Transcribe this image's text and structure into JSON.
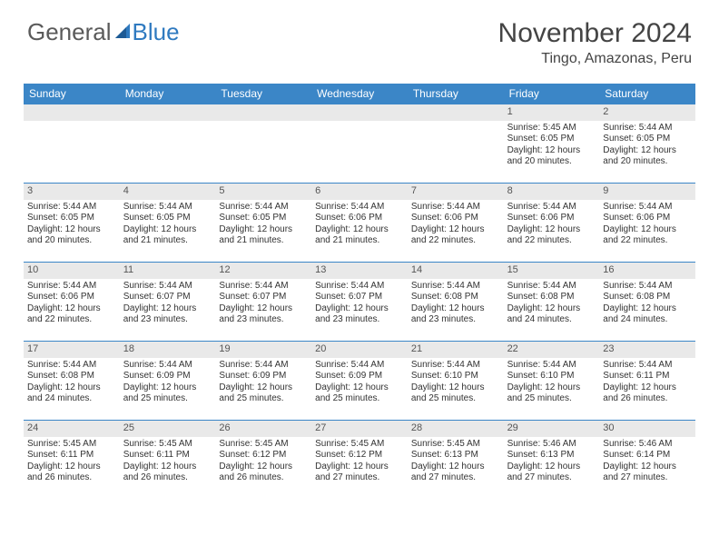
{
  "logo": {
    "text1": "General",
    "text2": "Blue"
  },
  "title": "November 2024",
  "location": "Tingo, Amazonas, Peru",
  "colors": {
    "header_bg": "#3b86c7",
    "header_fg": "#ffffff",
    "border": "#3b86c7",
    "daynum_bg": "#e9e9e9",
    "text": "#333333",
    "logo_gray": "#5a5a5a",
    "logo_blue": "#2f7ac0"
  },
  "day_names": [
    "Sunday",
    "Monday",
    "Tuesday",
    "Wednesday",
    "Thursday",
    "Friday",
    "Saturday"
  ],
  "weeks": [
    [
      {
        "n": ""
      },
      {
        "n": ""
      },
      {
        "n": ""
      },
      {
        "n": ""
      },
      {
        "n": ""
      },
      {
        "n": "1",
        "sr": "Sunrise: 5:45 AM",
        "ss": "Sunset: 6:05 PM",
        "dl1": "Daylight: 12 hours",
        "dl2": "and 20 minutes."
      },
      {
        "n": "2",
        "sr": "Sunrise: 5:44 AM",
        "ss": "Sunset: 6:05 PM",
        "dl1": "Daylight: 12 hours",
        "dl2": "and 20 minutes."
      }
    ],
    [
      {
        "n": "3",
        "sr": "Sunrise: 5:44 AM",
        "ss": "Sunset: 6:05 PM",
        "dl1": "Daylight: 12 hours",
        "dl2": "and 20 minutes."
      },
      {
        "n": "4",
        "sr": "Sunrise: 5:44 AM",
        "ss": "Sunset: 6:05 PM",
        "dl1": "Daylight: 12 hours",
        "dl2": "and 21 minutes."
      },
      {
        "n": "5",
        "sr": "Sunrise: 5:44 AM",
        "ss": "Sunset: 6:05 PM",
        "dl1": "Daylight: 12 hours",
        "dl2": "and 21 minutes."
      },
      {
        "n": "6",
        "sr": "Sunrise: 5:44 AM",
        "ss": "Sunset: 6:06 PM",
        "dl1": "Daylight: 12 hours",
        "dl2": "and 21 minutes."
      },
      {
        "n": "7",
        "sr": "Sunrise: 5:44 AM",
        "ss": "Sunset: 6:06 PM",
        "dl1": "Daylight: 12 hours",
        "dl2": "and 22 minutes."
      },
      {
        "n": "8",
        "sr": "Sunrise: 5:44 AM",
        "ss": "Sunset: 6:06 PM",
        "dl1": "Daylight: 12 hours",
        "dl2": "and 22 minutes."
      },
      {
        "n": "9",
        "sr": "Sunrise: 5:44 AM",
        "ss": "Sunset: 6:06 PM",
        "dl1": "Daylight: 12 hours",
        "dl2": "and 22 minutes."
      }
    ],
    [
      {
        "n": "10",
        "sr": "Sunrise: 5:44 AM",
        "ss": "Sunset: 6:06 PM",
        "dl1": "Daylight: 12 hours",
        "dl2": "and 22 minutes."
      },
      {
        "n": "11",
        "sr": "Sunrise: 5:44 AM",
        "ss": "Sunset: 6:07 PM",
        "dl1": "Daylight: 12 hours",
        "dl2": "and 23 minutes."
      },
      {
        "n": "12",
        "sr": "Sunrise: 5:44 AM",
        "ss": "Sunset: 6:07 PM",
        "dl1": "Daylight: 12 hours",
        "dl2": "and 23 minutes."
      },
      {
        "n": "13",
        "sr": "Sunrise: 5:44 AM",
        "ss": "Sunset: 6:07 PM",
        "dl1": "Daylight: 12 hours",
        "dl2": "and 23 minutes."
      },
      {
        "n": "14",
        "sr": "Sunrise: 5:44 AM",
        "ss": "Sunset: 6:08 PM",
        "dl1": "Daylight: 12 hours",
        "dl2": "and 23 minutes."
      },
      {
        "n": "15",
        "sr": "Sunrise: 5:44 AM",
        "ss": "Sunset: 6:08 PM",
        "dl1": "Daylight: 12 hours",
        "dl2": "and 24 minutes."
      },
      {
        "n": "16",
        "sr": "Sunrise: 5:44 AM",
        "ss": "Sunset: 6:08 PM",
        "dl1": "Daylight: 12 hours",
        "dl2": "and 24 minutes."
      }
    ],
    [
      {
        "n": "17",
        "sr": "Sunrise: 5:44 AM",
        "ss": "Sunset: 6:08 PM",
        "dl1": "Daylight: 12 hours",
        "dl2": "and 24 minutes."
      },
      {
        "n": "18",
        "sr": "Sunrise: 5:44 AM",
        "ss": "Sunset: 6:09 PM",
        "dl1": "Daylight: 12 hours",
        "dl2": "and 25 minutes."
      },
      {
        "n": "19",
        "sr": "Sunrise: 5:44 AM",
        "ss": "Sunset: 6:09 PM",
        "dl1": "Daylight: 12 hours",
        "dl2": "and 25 minutes."
      },
      {
        "n": "20",
        "sr": "Sunrise: 5:44 AM",
        "ss": "Sunset: 6:09 PM",
        "dl1": "Daylight: 12 hours",
        "dl2": "and 25 minutes."
      },
      {
        "n": "21",
        "sr": "Sunrise: 5:44 AM",
        "ss": "Sunset: 6:10 PM",
        "dl1": "Daylight: 12 hours",
        "dl2": "and 25 minutes."
      },
      {
        "n": "22",
        "sr": "Sunrise: 5:44 AM",
        "ss": "Sunset: 6:10 PM",
        "dl1": "Daylight: 12 hours",
        "dl2": "and 25 minutes."
      },
      {
        "n": "23",
        "sr": "Sunrise: 5:44 AM",
        "ss": "Sunset: 6:11 PM",
        "dl1": "Daylight: 12 hours",
        "dl2": "and 26 minutes."
      }
    ],
    [
      {
        "n": "24",
        "sr": "Sunrise: 5:45 AM",
        "ss": "Sunset: 6:11 PM",
        "dl1": "Daylight: 12 hours",
        "dl2": "and 26 minutes."
      },
      {
        "n": "25",
        "sr": "Sunrise: 5:45 AM",
        "ss": "Sunset: 6:11 PM",
        "dl1": "Daylight: 12 hours",
        "dl2": "and 26 minutes."
      },
      {
        "n": "26",
        "sr": "Sunrise: 5:45 AM",
        "ss": "Sunset: 6:12 PM",
        "dl1": "Daylight: 12 hours",
        "dl2": "and 26 minutes."
      },
      {
        "n": "27",
        "sr": "Sunrise: 5:45 AM",
        "ss": "Sunset: 6:12 PM",
        "dl1": "Daylight: 12 hours",
        "dl2": "and 27 minutes."
      },
      {
        "n": "28",
        "sr": "Sunrise: 5:45 AM",
        "ss": "Sunset: 6:13 PM",
        "dl1": "Daylight: 12 hours",
        "dl2": "and 27 minutes."
      },
      {
        "n": "29",
        "sr": "Sunrise: 5:46 AM",
        "ss": "Sunset: 6:13 PM",
        "dl1": "Daylight: 12 hours",
        "dl2": "and 27 minutes."
      },
      {
        "n": "30",
        "sr": "Sunrise: 5:46 AM",
        "ss": "Sunset: 6:14 PM",
        "dl1": "Daylight: 12 hours",
        "dl2": "and 27 minutes."
      }
    ]
  ]
}
